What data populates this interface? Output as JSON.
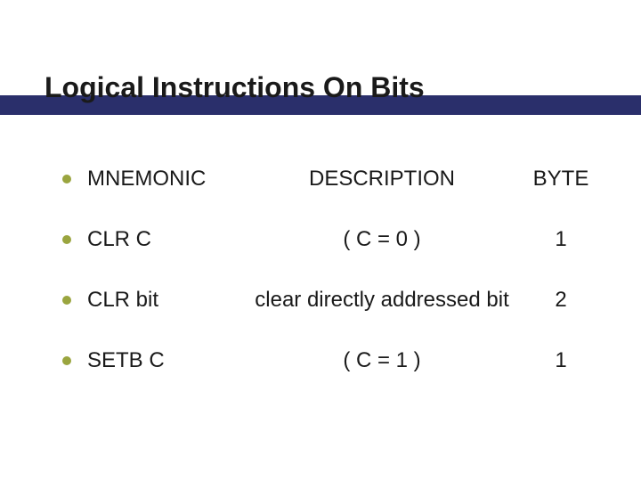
{
  "title": "Logical Instructions On Bits",
  "colors": {
    "bullet": "#9aa53f",
    "underline": "#2a2f6b",
    "text": "#1a1a1a",
    "background": "#ffffff"
  },
  "typography": {
    "title_fontsize": 32,
    "body_fontsize": 24,
    "font_family": "Arial"
  },
  "table": {
    "headers": {
      "mnemonic": "MNEMONIC",
      "description": "DESCRIPTION",
      "byte": "BYTE"
    },
    "rows": [
      {
        "mnemonic": "CLR C",
        "description": "( C = 0 )",
        "byte": "1"
      },
      {
        "mnemonic": "CLR bit",
        "description": "clear directly addressed bit",
        "byte": "2"
      },
      {
        "mnemonic": "SETB C",
        "description": "( C = 1 )",
        "byte": "1"
      }
    ]
  }
}
